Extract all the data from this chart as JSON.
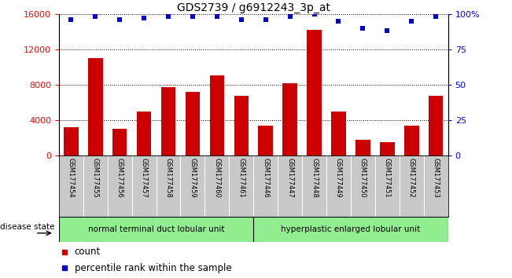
{
  "title": "GDS2739 / g6912243_3p_at",
  "samples": [
    "GSM177454",
    "GSM177455",
    "GSM177456",
    "GSM177457",
    "GSM177458",
    "GSM177459",
    "GSM177460",
    "GSM177461",
    "GSM177446",
    "GSM177447",
    "GSM177448",
    "GSM177449",
    "GSM177450",
    "GSM177451",
    "GSM177452",
    "GSM177453"
  ],
  "counts": [
    3200,
    11000,
    3000,
    5000,
    7700,
    7200,
    9100,
    6800,
    3400,
    8200,
    14200,
    5000,
    1800,
    1500,
    3400,
    6800
  ],
  "percentiles": [
    96,
    98,
    96,
    97,
    98,
    98,
    98,
    96,
    96,
    98,
    100,
    95,
    90,
    88,
    95,
    98
  ],
  "bar_color": "#cc0000",
  "dot_color": "#0000cc",
  "ylim_left": [
    0,
    16000
  ],
  "ylim_right": [
    0,
    100
  ],
  "yticks_left": [
    0,
    4000,
    8000,
    12000,
    16000
  ],
  "yticks_right": [
    0,
    25,
    50,
    75,
    100
  ],
  "ytick_labels_right": [
    "0",
    "25",
    "50",
    "75",
    "100%"
  ],
  "group1_label": "normal terminal duct lobular unit",
  "group2_label": "hyperplastic enlarged lobular unit",
  "group1_count": 8,
  "group2_count": 8,
  "disease_state_label": "disease state",
  "legend_count_label": "count",
  "legend_pct_label": "percentile rank within the sample",
  "group1_color": "#90ee90",
  "group2_color": "#90ee90",
  "tick_area_color": "#c8c8c8",
  "title_fontsize": 10,
  "axis_fontsize": 8,
  "legend_fontsize": 8.5
}
